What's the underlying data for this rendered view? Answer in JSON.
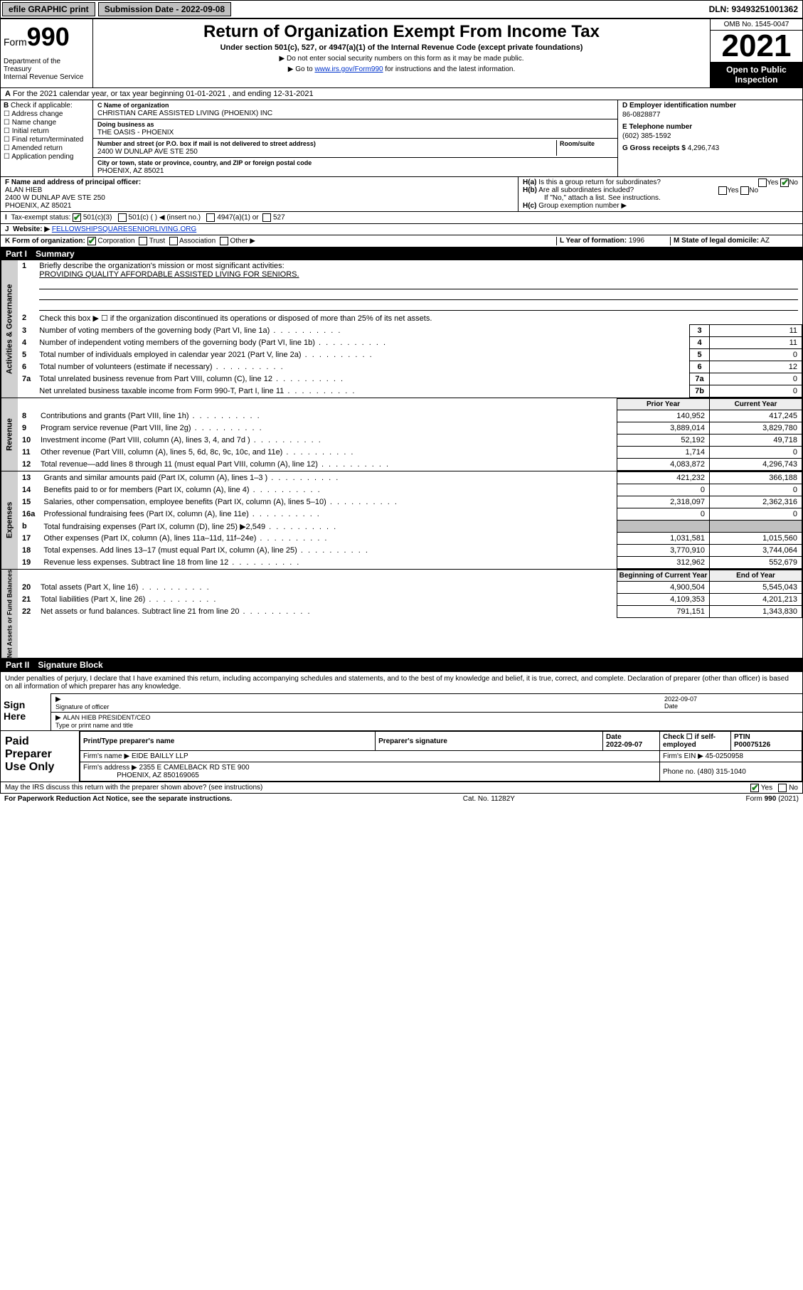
{
  "topbar": {
    "efile": "efile GRAPHIC print",
    "submission_label": "Submission Date - 2022-09-08",
    "dln": "DLN: 93493251001362"
  },
  "header": {
    "form_prefix": "Form",
    "form_number": "990",
    "dept": "Department of the Treasury\nInternal Revenue Service",
    "title": "Return of Organization Exempt From Income Tax",
    "subtitle": "Under section 501(c), 527, or 4947(a)(1) of the Internal Revenue Code (except private foundations)",
    "note1": "▶ Do not enter social security numbers on this form as it may be made public.",
    "note2_pre": "▶ Go to ",
    "note2_link": "www.irs.gov/Form990",
    "note2_post": " for instructions and the latest information.",
    "omb": "OMB No. 1545-0047",
    "year": "2021",
    "inspection": "Open to Public Inspection"
  },
  "periodA": "For the 2021 calendar year, or tax year beginning 01-01-2021   , and ending 12-31-2021",
  "B": {
    "label": "Check if applicable:",
    "opts": [
      "Address change",
      "Name change",
      "Initial return",
      "Final return/terminated",
      "Amended return",
      "Application pending"
    ]
  },
  "C": {
    "name_lbl": "C Name of organization",
    "name": "CHRISTIAN CARE ASSISTED LIVING (PHOENIX) INC",
    "dba_lbl": "Doing business as",
    "dba": "THE OASIS - PHOENIX",
    "street_lbl": "Number and street (or P.O. box if mail is not delivered to street address)",
    "room_lbl": "Room/suite",
    "street": "2400 W DUNLAP AVE STE 250",
    "city_lbl": "City or town, state or province, country, and ZIP or foreign postal code",
    "city": "PHOENIX, AZ  85021"
  },
  "D": {
    "lbl": "D Employer identification number",
    "val": "86-0828877"
  },
  "E": {
    "lbl": "E Telephone number",
    "val": "(602) 385-1592"
  },
  "G": {
    "lbl": "G Gross receipts $",
    "val": "4,296,743"
  },
  "F": {
    "lbl": "F  Name and address of principal officer:",
    "name": "ALAN HIEB",
    "addr1": "2400 W DUNLAP AVE STE 250",
    "addr2": "PHOENIX, AZ  85021"
  },
  "H": {
    "a": "Is this a group return for subordinates?",
    "b": "Are all subordinates included?",
    "note": "If \"No,\" attach a list. See instructions.",
    "c_lbl": "Group exemption number ▶",
    "yes": "Yes",
    "no": "No"
  },
  "I": {
    "lbl": "Tax-exempt status:",
    "opts": [
      "501(c)(3)",
      "501(c) (  ) ◀ (insert no.)",
      "4947(a)(1) or",
      "527"
    ]
  },
  "J": {
    "lbl": "Website: ▶",
    "val": "FELLOWSHIPSQUARESENIORLIVING.ORG"
  },
  "K": {
    "lbl": "K Form of organization:",
    "opts": [
      "Corporation",
      "Trust",
      "Association",
      "Other ▶"
    ]
  },
  "L": {
    "lbl": "L Year of formation:",
    "val": "1996"
  },
  "M": {
    "lbl": "M State of legal domicile:",
    "val": "AZ"
  },
  "part1": {
    "label": "Part I",
    "title": "Summary"
  },
  "summary": {
    "mission_lbl": "Briefly describe the organization's mission or most significant activities:",
    "mission": "PROVIDING QUALITY AFFORDABLE ASSISTED LIVING FOR SENIORS.",
    "line2": "Check this box ▶ ☐  if the organization discontinued its operations or disposed of more than 25% of its net assets.",
    "rows_gov": [
      {
        "n": "3",
        "t": "Number of voting members of the governing body (Part VI, line 1a)",
        "k": "3",
        "v": "11"
      },
      {
        "n": "4",
        "t": "Number of independent voting members of the governing body (Part VI, line 1b)",
        "k": "4",
        "v": "11"
      },
      {
        "n": "5",
        "t": "Total number of individuals employed in calendar year 2021 (Part V, line 2a)",
        "k": "5",
        "v": "0"
      },
      {
        "n": "6",
        "t": "Total number of volunteers (estimate if necessary)",
        "k": "6",
        "v": "12"
      },
      {
        "n": "7a",
        "t": "Total unrelated business revenue from Part VIII, column (C), line 12",
        "k": "7a",
        "v": "0"
      },
      {
        "n": "",
        "t": "Net unrelated business taxable income from Form 990-T, Part I, line 11",
        "k": "7b",
        "v": "0"
      }
    ],
    "col_prior": "Prior Year",
    "col_current": "Current Year",
    "revenue": [
      {
        "n": "8",
        "t": "Contributions and grants (Part VIII, line 1h)",
        "p": "140,952",
        "c": "417,245"
      },
      {
        "n": "9",
        "t": "Program service revenue (Part VIII, line 2g)",
        "p": "3,889,014",
        "c": "3,829,780"
      },
      {
        "n": "10",
        "t": "Investment income (Part VIII, column (A), lines 3, 4, and 7d )",
        "p": "52,192",
        "c": "49,718"
      },
      {
        "n": "11",
        "t": "Other revenue (Part VIII, column (A), lines 5, 6d, 8c, 9c, 10c, and 11e)",
        "p": "1,714",
        "c": "0"
      },
      {
        "n": "12",
        "t": "Total revenue—add lines 8 through 11 (must equal Part VIII, column (A), line 12)",
        "p": "4,083,872",
        "c": "4,296,743"
      }
    ],
    "expenses": [
      {
        "n": "13",
        "t": "Grants and similar amounts paid (Part IX, column (A), lines 1–3 )",
        "p": "421,232",
        "c": "366,188"
      },
      {
        "n": "14",
        "t": "Benefits paid to or for members (Part IX, column (A), line 4)",
        "p": "0",
        "c": "0"
      },
      {
        "n": "15",
        "t": "Salaries, other compensation, employee benefits (Part IX, column (A), lines 5–10)",
        "p": "2,318,097",
        "c": "2,362,316"
      },
      {
        "n": "16a",
        "t": "Professional fundraising fees (Part IX, column (A), line 11e)",
        "p": "0",
        "c": "0"
      },
      {
        "n": "b",
        "t": "Total fundraising expenses (Part IX, column (D), line 25) ▶2,549",
        "p": "",
        "c": "",
        "gray": true
      },
      {
        "n": "17",
        "t": "Other expenses (Part IX, column (A), lines 11a–11d, 11f–24e)",
        "p": "1,031,581",
        "c": "1,015,560"
      },
      {
        "n": "18",
        "t": "Total expenses. Add lines 13–17 (must equal Part IX, column (A), line 25)",
        "p": "3,770,910",
        "c": "3,744,064"
      },
      {
        "n": "19",
        "t": "Revenue less expenses. Subtract line 18 from line 12",
        "p": "312,962",
        "c": "552,679"
      }
    ],
    "col_begin": "Beginning of Current Year",
    "col_end": "End of Year",
    "net": [
      {
        "n": "20",
        "t": "Total assets (Part X, line 16)",
        "p": "4,900,504",
        "c": "5,545,043"
      },
      {
        "n": "21",
        "t": "Total liabilities (Part X, line 26)",
        "p": "4,109,353",
        "c": "4,201,213"
      },
      {
        "n": "22",
        "t": "Net assets or fund balances. Subtract line 21 from line 20",
        "p": "791,151",
        "c": "1,343,830"
      }
    ],
    "side_gov": "Activities & Governance",
    "side_rev": "Revenue",
    "side_exp": "Expenses",
    "side_net": "Net Assets or Fund Balances"
  },
  "part2": {
    "label": "Part II",
    "title": "Signature Block"
  },
  "sig": {
    "decl": "Under penalties of perjury, I declare that I have examined this return, including accompanying schedules and statements, and to the best of my knowledge and belief, it is true, correct, and complete. Declaration of preparer (other than officer) is based on all information of which preparer has any knowledge.",
    "sign_here": "Sign Here",
    "sig_officer": "Signature of officer",
    "date": "Date",
    "sig_date": "2022-09-07",
    "name_title": "ALAN HIEB  PRESIDENT/CEO",
    "type_name": "Type or print name and title"
  },
  "prep": {
    "label": "Paid Preparer Use Only",
    "h": [
      "Print/Type preparer's name",
      "Preparer's signature",
      "Date",
      "",
      "PTIN"
    ],
    "date": "2022-09-07",
    "check_lbl": "Check ☐ if self-employed",
    "ptin": "P00075126",
    "firm_name_lbl": "Firm's name   ▶",
    "firm_name": "EIDE BAILLY LLP",
    "firm_ein_lbl": "Firm's EIN ▶",
    "firm_ein": "45-0250958",
    "firm_addr_lbl": "Firm's address ▶",
    "firm_addr": "2355 E CAMELBACK RD STE 900",
    "firm_city": "PHOENIX, AZ  850169065",
    "phone_lbl": "Phone no.",
    "phone": "(480) 315-1040"
  },
  "discuss": {
    "q": "May the IRS discuss this return with the preparer shown above? (see instructions)",
    "yes": "Yes",
    "no": "No"
  },
  "footer": {
    "left": "For Paperwork Reduction Act Notice, see the separate instructions.",
    "mid": "Cat. No. 11282Y",
    "right": "Form 990 (2021)"
  },
  "colors": {
    "link": "#0033cc",
    "check_green": "#1a7f1a",
    "gray": "#c0c0c0",
    "black": "#000000"
  }
}
